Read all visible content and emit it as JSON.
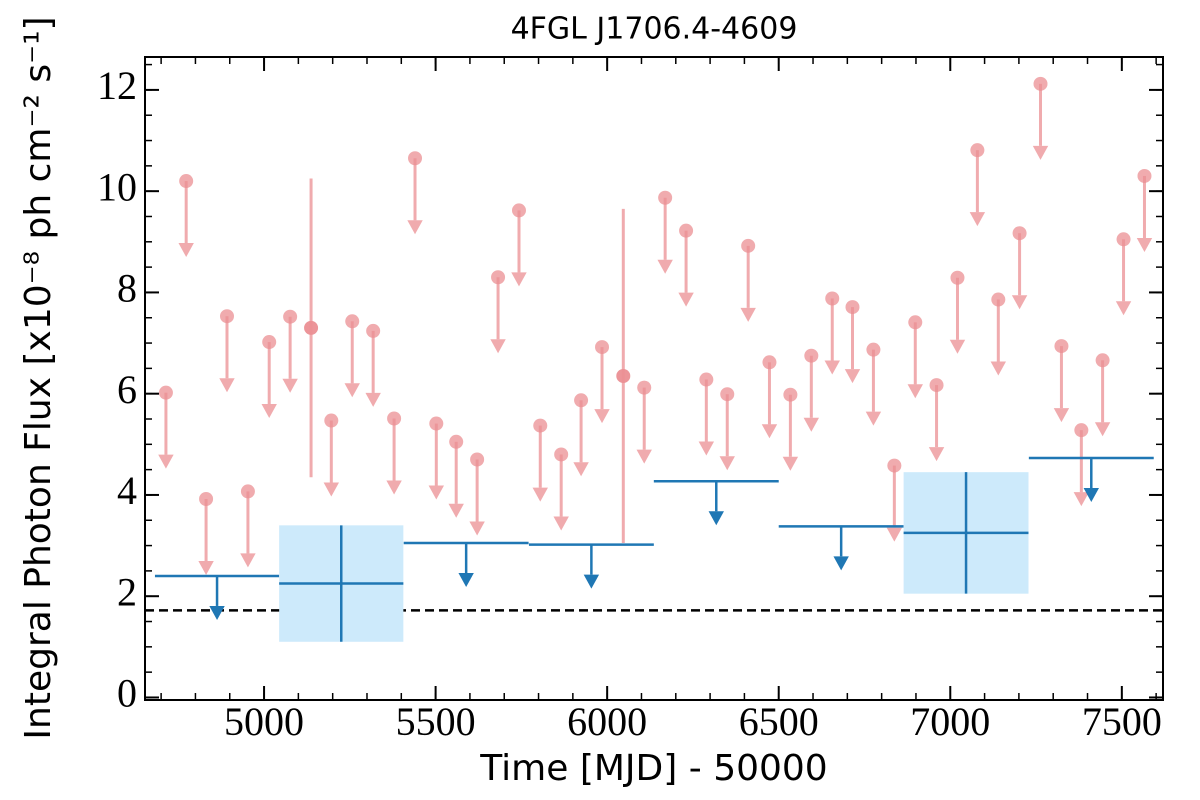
{
  "chart_data": {
    "type": "lightcurve",
    "title": "4FGL J1706.4-4609",
    "x_label": "Time [MJD] - 50000",
    "y_label": "Integral Photon Flux [x10⁻⁸ ph cm⁻² s⁻¹]",
    "xlim": [
      4653,
      7620
    ],
    "ylim": [
      -0.05,
      12.65
    ],
    "xticks": [
      5000,
      5500,
      6000,
      6500,
      7000,
      7500
    ],
    "yticks": [
      0,
      2,
      4,
      6,
      8,
      10,
      12
    ],
    "x_minor_step": 100,
    "y_minor_step": 0.5,
    "hlines": [
      {
        "value": 1.72,
        "color": "#000000",
        "style": "dashed"
      }
    ],
    "series": [
      {
        "color": "#eb8f93",
        "x": [
          4714,
          4773,
          4831,
          4892,
          4953,
          5015,
          5076,
          5137,
          5196,
          5257,
          5318,
          5379,
          5440,
          5502,
          5560,
          5621,
          5682,
          5743,
          5805,
          5866,
          5924,
          5985,
          6047,
          6108,
          6169,
          6230,
          6289,
          6350,
          6411,
          6473,
          6534,
          6595,
          6656,
          6715,
          6776,
          6837,
          6898,
          6960,
          7021,
          7079,
          7140,
          7202,
          7263,
          7324,
          7382,
          7444,
          7505,
          7566
        ],
        "values": [
          6.02,
          10.2,
          3.92,
          7.53,
          4.07,
          7.02,
          7.52,
          7.3,
          5.47,
          7.43,
          7.24,
          5.51,
          10.65,
          5.41,
          5.05,
          4.7,
          8.3,
          9.62,
          5.37,
          4.8,
          5.87,
          6.92,
          6.35,
          6.12,
          9.87,
          9.22,
          6.28,
          5.99,
          8.92,
          6.62,
          5.98,
          6.75,
          7.88,
          7.71,
          6.87,
          4.58,
          7.41,
          6.17,
          8.29,
          10.81,
          7.86,
          9.17,
          12.12,
          6.94,
          5.28,
          6.66,
          9.05,
          10.3
        ],
        "errors": [
          null,
          null,
          null,
          null,
          null,
          null,
          null,
          2.95,
          null,
          null,
          null,
          null,
          null,
          null,
          null,
          null,
          null,
          null,
          null,
          null,
          null,
          null,
          3.3,
          null,
          null,
          null,
          null,
          null,
          null,
          null,
          null,
          null,
          null,
          null,
          null,
          null,
          null,
          null,
          null,
          null,
          null,
          null,
          null,
          null,
          null,
          null,
          null,
          null
        ],
        "upper_limits": [
          true,
          true,
          true,
          true,
          true,
          true,
          true,
          false,
          true,
          true,
          true,
          true,
          true,
          true,
          true,
          true,
          true,
          true,
          true,
          true,
          true,
          true,
          false,
          true,
          true,
          true,
          true,
          true,
          true,
          true,
          true,
          true,
          true,
          true,
          true,
          true,
          true,
          true,
          true,
          true,
          true,
          true,
          true,
          true,
          true,
          true,
          true,
          true
        ]
      },
      {
        "color": "#1f77b4",
        "box_color": "#cdeafb",
        "x": [
          4863,
          5225,
          5589,
          5954,
          6318,
          6682,
          7046,
          7411
        ],
        "xerr": [
          181,
          181,
          182,
          182,
          182,
          182,
          182,
          182
        ],
        "values": [
          2.4,
          2.25,
          3.05,
          3.02,
          4.27,
          3.38,
          3.25,
          4.73
        ],
        "errors": [
          null,
          1.15,
          null,
          null,
          null,
          null,
          1.2,
          null
        ],
        "upper_limits": [
          true,
          false,
          true,
          true,
          true,
          true,
          false,
          true
        ]
      }
    ]
  }
}
